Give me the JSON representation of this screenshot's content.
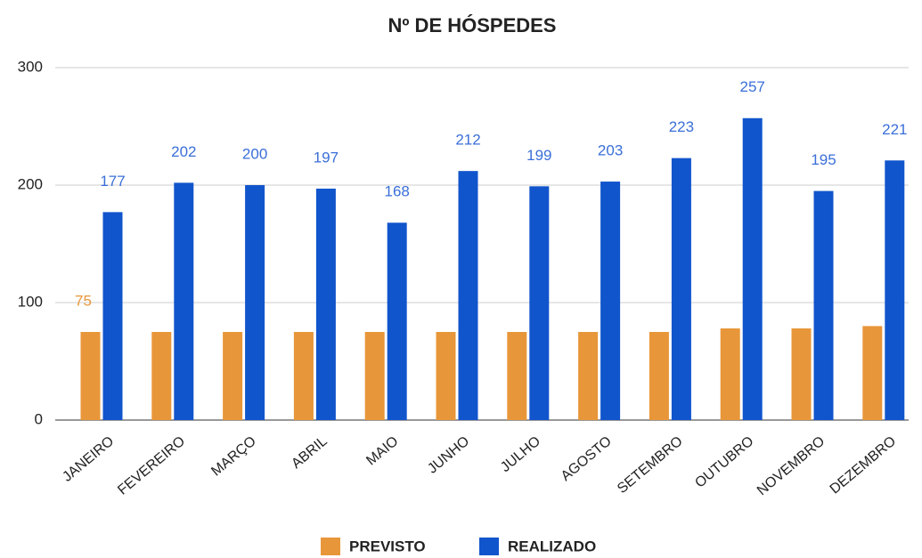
{
  "chart_data": {
    "type": "bar",
    "title": "Nº DE HÓSPEDES",
    "categories": [
      "JANEIRO",
      "FEVEREIRO",
      "MARÇO",
      "ABRIL",
      "MAIO",
      "JUNHO",
      "JULHO",
      "AGOSTO",
      "SETEMBRO",
      "OUTUBRO",
      "NOVEMBRO",
      "DEZEMBRO"
    ],
    "series": [
      {
        "name": "PREVISTO",
        "color": "#e8963a",
        "values": [
          75,
          75,
          75,
          75,
          75,
          75,
          75,
          75,
          75,
          78,
          78,
          80
        ],
        "value_labels": [
          "75",
          null,
          null,
          null,
          null,
          null,
          null,
          null,
          null,
          null,
          null,
          null
        ]
      },
      {
        "name": "REALIZADO",
        "color": "#1155cc",
        "values": [
          177,
          202,
          200,
          197,
          168,
          212,
          199,
          203,
          223,
          257,
          195,
          221
        ],
        "value_labels": [
          "177",
          "202",
          "200",
          "197",
          "168",
          "212",
          "199",
          "203",
          "223",
          "257",
          "195",
          "221"
        ]
      }
    ],
    "ylim": [
      0,
      300
    ],
    "yticks": [
      0,
      100,
      200,
      300
    ],
    "grid": true,
    "legend": "bottom"
  }
}
